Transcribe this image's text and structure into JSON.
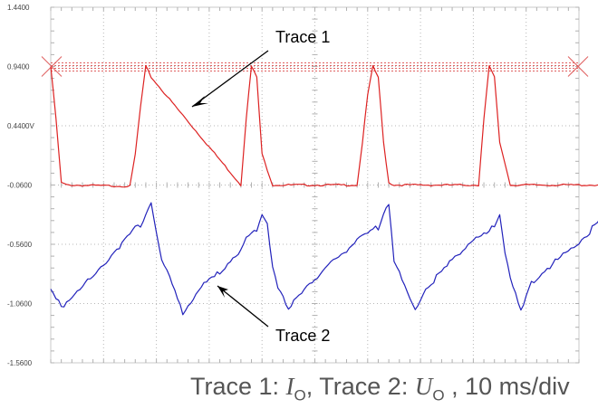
{
  "chart_data": {
    "type": "line",
    "title": "",
    "x_unit_note": "10 ms/div",
    "ylim": [
      -1.56,
      1.44
    ],
    "y_ticks": [
      "1.4400",
      "0.9400",
      "0.4400V",
      "-0.0600",
      "-0.5600",
      "-1.0600",
      "-1.5600"
    ],
    "x_divisions": 10,
    "x_minor_per_division": 5,
    "grid": "dotted",
    "series": [
      {
        "name": "Trace 1",
        "color": "#dd2222",
        "x_ms": [
          0,
          1,
          2,
          3,
          15,
          16,
          17,
          18,
          19,
          36,
          37,
          38,
          39,
          40,
          42,
          43,
          44,
          45,
          46,
          58,
          59,
          60,
          61,
          62,
          63,
          64,
          65,
          81,
          82,
          83,
          84,
          85,
          87,
          88,
          89,
          90,
          91,
          93,
          97,
          100,
          104,
          105,
          106,
          107,
          108
        ],
        "y": [
          0.94,
          0.5,
          -0.04,
          -0.06,
          -0.07,
          0.2,
          0.6,
          0.94,
          0.85,
          -0.06,
          0.5,
          0.94,
          0.85,
          0.2,
          -0.06,
          -0.06,
          -0.06,
          -0.06,
          -0.06,
          -0.06,
          0.3,
          0.7,
          0.94,
          0.85,
          0.3,
          -0.04,
          -0.06,
          -0.06,
          0.5,
          0.94,
          0.85,
          0.3,
          -0.06,
          -0.06,
          -0.06,
          -0.06,
          -0.06,
          -0.06,
          -0.06,
          -0.06,
          -0.06,
          0.3,
          0.8,
          0.94,
          0.94
        ]
      },
      {
        "name": "Trace 2",
        "color": "#2222bb",
        "x_ms": [
          0,
          2,
          5,
          8,
          12,
          15,
          16,
          17,
          18,
          19,
          21,
          23,
          25,
          28,
          31,
          34,
          36,
          37,
          38,
          39,
          40,
          41,
          42,
          43,
          45,
          48,
          51,
          55,
          59,
          61,
          62,
          63,
          64,
          65,
          67,
          69,
          71,
          74,
          77,
          80,
          83,
          84,
          85,
          86,
          87,
          89,
          91,
          94,
          98,
          101,
          104,
          106,
          108
        ],
        "y": [
          -0.95,
          -1.09,
          -0.94,
          -0.84,
          -0.62,
          -0.48,
          -0.42,
          -0.42,
          -0.3,
          -0.2,
          -0.7,
          -0.9,
          -1.14,
          -0.94,
          -0.84,
          -0.69,
          -0.62,
          -0.52,
          -0.48,
          -0.45,
          -0.3,
          -0.38,
          -0.74,
          -0.92,
          -1.12,
          -0.92,
          -0.82,
          -0.64,
          -0.5,
          -0.44,
          -0.42,
          -0.28,
          -0.2,
          -0.7,
          -0.92,
          -1.12,
          -0.93,
          -0.8,
          -0.64,
          -0.52,
          -0.46,
          -0.4,
          -0.3,
          -0.62,
          -0.84,
          -1.14,
          -0.88,
          -0.76,
          -0.62,
          -0.5,
          -0.36,
          -0.3,
          -0.92
        ]
      }
    ],
    "annotations": [
      {
        "text": "Trace 1",
        "arrow": "points-to-trace-1"
      },
      {
        "text": "Trace 2",
        "arrow": "points-to-trace-2"
      }
    ],
    "trigger_level": 0.94
  },
  "caption": {
    "prefix": "Trace 1: ",
    "sym1": "I",
    "sub1": "O",
    "mid": ", Trace 2: ",
    "sym2": "U",
    "sub2": "O",
    "suffix": " , 10 ms/div"
  }
}
